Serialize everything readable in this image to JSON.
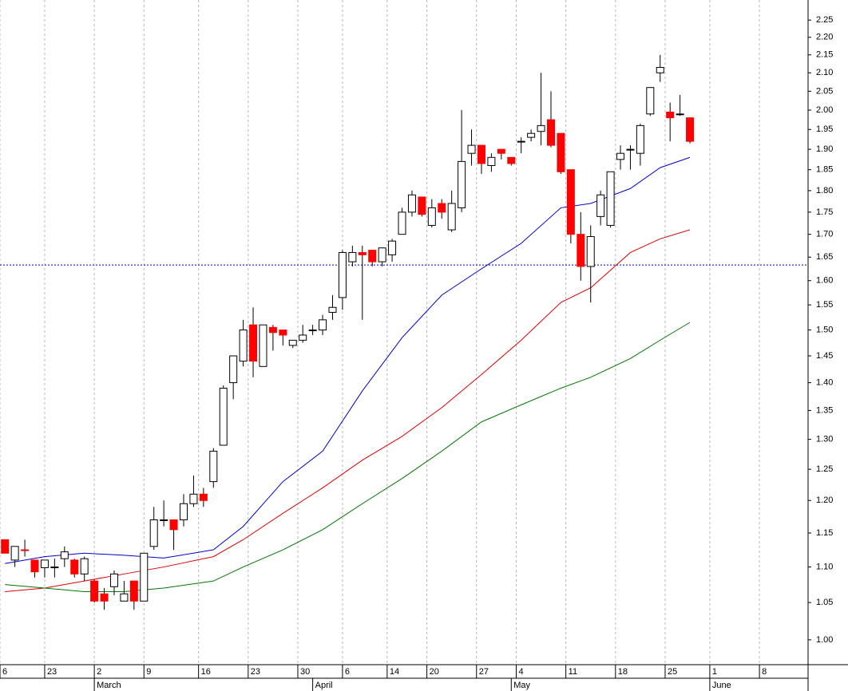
{
  "chart_data": {
    "type": "candlestick",
    "log_scale": true,
    "grid": true,
    "up_color": "#ffffff",
    "down_color": "#ff0000",
    "open": [
      1.14,
      1.11,
      1.125,
      1.11,
      1.099,
      1.1,
      1.112,
      1.11,
      1.09,
      1.08,
      1.062,
      1.072,
      1.052,
      1.08,
      1.052,
      1.13,
      1.17,
      1.17,
      1.17,
      1.195,
      1.21,
      1.23,
      1.29,
      1.4,
      1.44,
      1.51,
      1.43,
      1.505,
      1.5,
      1.47,
      1.48,
      1.5,
      1.5,
      1.535,
      1.565,
      1.64,
      1.66,
      1.665,
      1.64,
      1.655,
      1.7,
      1.75,
      1.785,
      1.72,
      1.77,
      1.71,
      1.76,
      1.89,
      1.91,
      1.86,
      1.9,
      1.88,
      1.92,
      1.93,
      1.945,
      1.975,
      1.94,
      1.85,
      1.7,
      1.63,
      1.74,
      1.72,
      1.875,
      1.9,
      1.89,
      1.99,
      2.1,
      1.995,
      1.99,
      1.98
    ],
    "high": [
      1.14,
      1.13,
      1.14,
      1.11,
      1.11,
      1.112,
      1.13,
      1.112,
      1.115,
      1.082,
      1.07,
      1.095,
      1.08,
      1.08,
      1.12,
      1.19,
      1.2,
      1.17,
      1.21,
      1.24,
      1.22,
      1.285,
      1.395,
      1.45,
      1.52,
      1.545,
      1.51,
      1.51,
      1.5,
      1.48,
      1.51,
      1.51,
      1.53,
      1.57,
      1.665,
      1.675,
      1.675,
      1.665,
      1.67,
      1.69,
      1.76,
      1.8,
      1.785,
      1.78,
      1.78,
      1.8,
      2.0,
      1.95,
      1.91,
      1.89,
      1.9,
      1.88,
      1.93,
      1.95,
      2.1,
      2.05,
      1.94,
      1.85,
      1.75,
      1.72,
      1.8,
      1.845,
      1.91,
      1.91,
      1.965,
      2.06,
      2.15,
      2.02,
      2.04,
      1.98
    ],
    "low": [
      1.12,
      1.1,
      1.115,
      1.085,
      1.085,
      1.085,
      1.1,
      1.085,
      1.08,
      1.05,
      1.04,
      1.06,
      1.052,
      1.04,
      1.052,
      1.125,
      1.16,
      1.125,
      1.16,
      1.19,
      1.19,
      1.22,
      1.29,
      1.37,
      1.43,
      1.41,
      1.43,
      1.46,
      1.47,
      1.465,
      1.475,
      1.49,
      1.49,
      1.52,
      1.54,
      1.63,
      1.52,
      1.63,
      1.63,
      1.64,
      1.7,
      1.74,
      1.74,
      1.715,
      1.735,
      1.705,
      1.75,
      1.86,
      1.84,
      1.845,
      1.875,
      1.86,
      1.89,
      1.92,
      1.91,
      1.905,
      1.84,
      1.68,
      1.6,
      1.555,
      1.72,
      1.715,
      1.85,
      1.85,
      1.86,
      1.985,
      2.075,
      1.92,
      1.985,
      1.915
    ],
    "close": [
      1.12,
      1.13,
      1.124,
      1.093,
      1.11,
      1.1,
      1.122,
      1.09,
      1.112,
      1.052,
      1.052,
      1.09,
      1.062,
      1.052,
      1.12,
      1.17,
      1.17,
      1.155,
      1.195,
      1.21,
      1.2,
      1.28,
      1.39,
      1.45,
      1.5,
      1.44,
      1.51,
      1.495,
      1.49,
      1.48,
      1.49,
      1.5,
      1.52,
      1.545,
      1.66,
      1.66,
      1.655,
      1.64,
      1.67,
      1.685,
      1.75,
      1.79,
      1.745,
      1.76,
      1.75,
      1.77,
      1.87,
      1.91,
      1.865,
      1.88,
      1.89,
      1.865,
      1.92,
      1.94,
      1.96,
      1.91,
      1.845,
      1.7,
      1.63,
      1.695,
      1.79,
      1.845,
      1.89,
      1.9,
      1.96,
      2.06,
      2.115,
      1.98,
      1.99,
      1.92
    ],
    "series": [
      {
        "color": "#0000cc",
        "x": [
          0,
          4,
          8,
          12,
          16,
          21,
          24,
          28,
          32,
          36,
          40,
          44,
          48,
          52,
          56,
          59,
          63,
          66,
          69
        ],
        "values": [
          1.105,
          1.115,
          1.12,
          1.117,
          1.113,
          1.125,
          1.16,
          1.23,
          1.28,
          1.385,
          1.485,
          1.57,
          1.625,
          1.68,
          1.76,
          1.77,
          1.805,
          1.855,
          1.88
        ]
      },
      {
        "color": "#dd0000",
        "x": [
          0,
          4,
          8,
          12,
          16,
          21,
          24,
          28,
          32,
          36,
          40,
          44,
          48,
          52,
          56,
          59,
          63,
          66,
          69
        ],
        "values": [
          1.065,
          1.07,
          1.08,
          1.09,
          1.1,
          1.115,
          1.14,
          1.18,
          1.22,
          1.265,
          1.305,
          1.355,
          1.415,
          1.48,
          1.555,
          1.585,
          1.66,
          1.69,
          1.71
        ]
      },
      {
        "color": "#007700",
        "x": [
          0,
          4,
          8,
          12,
          16,
          21,
          24,
          28,
          32,
          36,
          40,
          44,
          48,
          52,
          56,
          59,
          63,
          66,
          69
        ],
        "values": [
          1.075,
          1.07,
          1.065,
          1.065,
          1.07,
          1.08,
          1.1,
          1.125,
          1.155,
          1.195,
          1.235,
          1.28,
          1.33,
          1.36,
          1.39,
          1.41,
          1.445,
          1.48,
          1.515
        ]
      }
    ],
    "reference_line": 1.633,
    "xlim": [
      -0.5,
      80.9
    ],
    "ylim": [
      0.968,
      2.31
    ],
    "xticks": [
      {
        "value": -0.5,
        "label": "6"
      },
      {
        "value": 4,
        "label": "23"
      },
      {
        "value": 9,
        "label": "2"
      },
      {
        "value": 14,
        "label": "9"
      },
      {
        "value": 19.5,
        "label": "16"
      },
      {
        "value": 24.5,
        "label": "23"
      },
      {
        "value": 29.5,
        "label": "30"
      },
      {
        "value": 34,
        "label": "6"
      },
      {
        "value": 38.5,
        "label": "14"
      },
      {
        "value": 42.5,
        "label": "20"
      },
      {
        "value": 47.5,
        "label": "27"
      },
      {
        "value": 51.5,
        "label": "4"
      },
      {
        "value": 56.5,
        "label": "11"
      },
      {
        "value": 61.5,
        "label": "18"
      },
      {
        "value": 66.5,
        "label": "25"
      },
      {
        "value": 71,
        "label": "1"
      },
      {
        "value": 76,
        "label": "8"
      }
    ],
    "month_ticks": [
      {
        "value": 9,
        "label": "March"
      },
      {
        "value": 31,
        "label": "April"
      },
      {
        "value": 51,
        "label": "May"
      },
      {
        "value": 71,
        "label": "June"
      }
    ],
    "yticks": [
      {
        "value": 1.0,
        "label": "1.00"
      },
      {
        "value": 1.05,
        "label": "1.05"
      },
      {
        "value": 1.1,
        "label": "1.10"
      },
      {
        "value": 1.15,
        "label": "1.15"
      },
      {
        "value": 1.2,
        "label": "1.20"
      },
      {
        "value": 1.25,
        "label": "1.25"
      },
      {
        "value": 1.3,
        "label": "1.30"
      },
      {
        "value": 1.35,
        "label": "1.35"
      },
      {
        "value": 1.4,
        "label": "1.40"
      },
      {
        "value": 1.45,
        "label": "1.45"
      },
      {
        "value": 1.5,
        "label": "1.50"
      },
      {
        "value": 1.55,
        "label": "1.55"
      },
      {
        "value": 1.6,
        "label": "1.60"
      },
      {
        "value": 1.65,
        "label": "1.65"
      },
      {
        "value": 1.7,
        "label": "1.70"
      },
      {
        "value": 1.75,
        "label": "1.75"
      },
      {
        "value": 1.8,
        "label": "1.80"
      },
      {
        "value": 1.85,
        "label": "1.85"
      },
      {
        "value": 1.9,
        "label": "1.90"
      },
      {
        "value": 1.95,
        "label": "1.95"
      },
      {
        "value": 2.0,
        "label": "2.00"
      },
      {
        "value": 2.05,
        "label": "2.05"
      },
      {
        "value": 2.1,
        "label": "2.10"
      },
      {
        "value": 2.15,
        "label": "2.15"
      },
      {
        "value": 2.2,
        "label": "2.20"
      },
      {
        "value": 2.25,
        "label": "2.25"
      }
    ]
  }
}
